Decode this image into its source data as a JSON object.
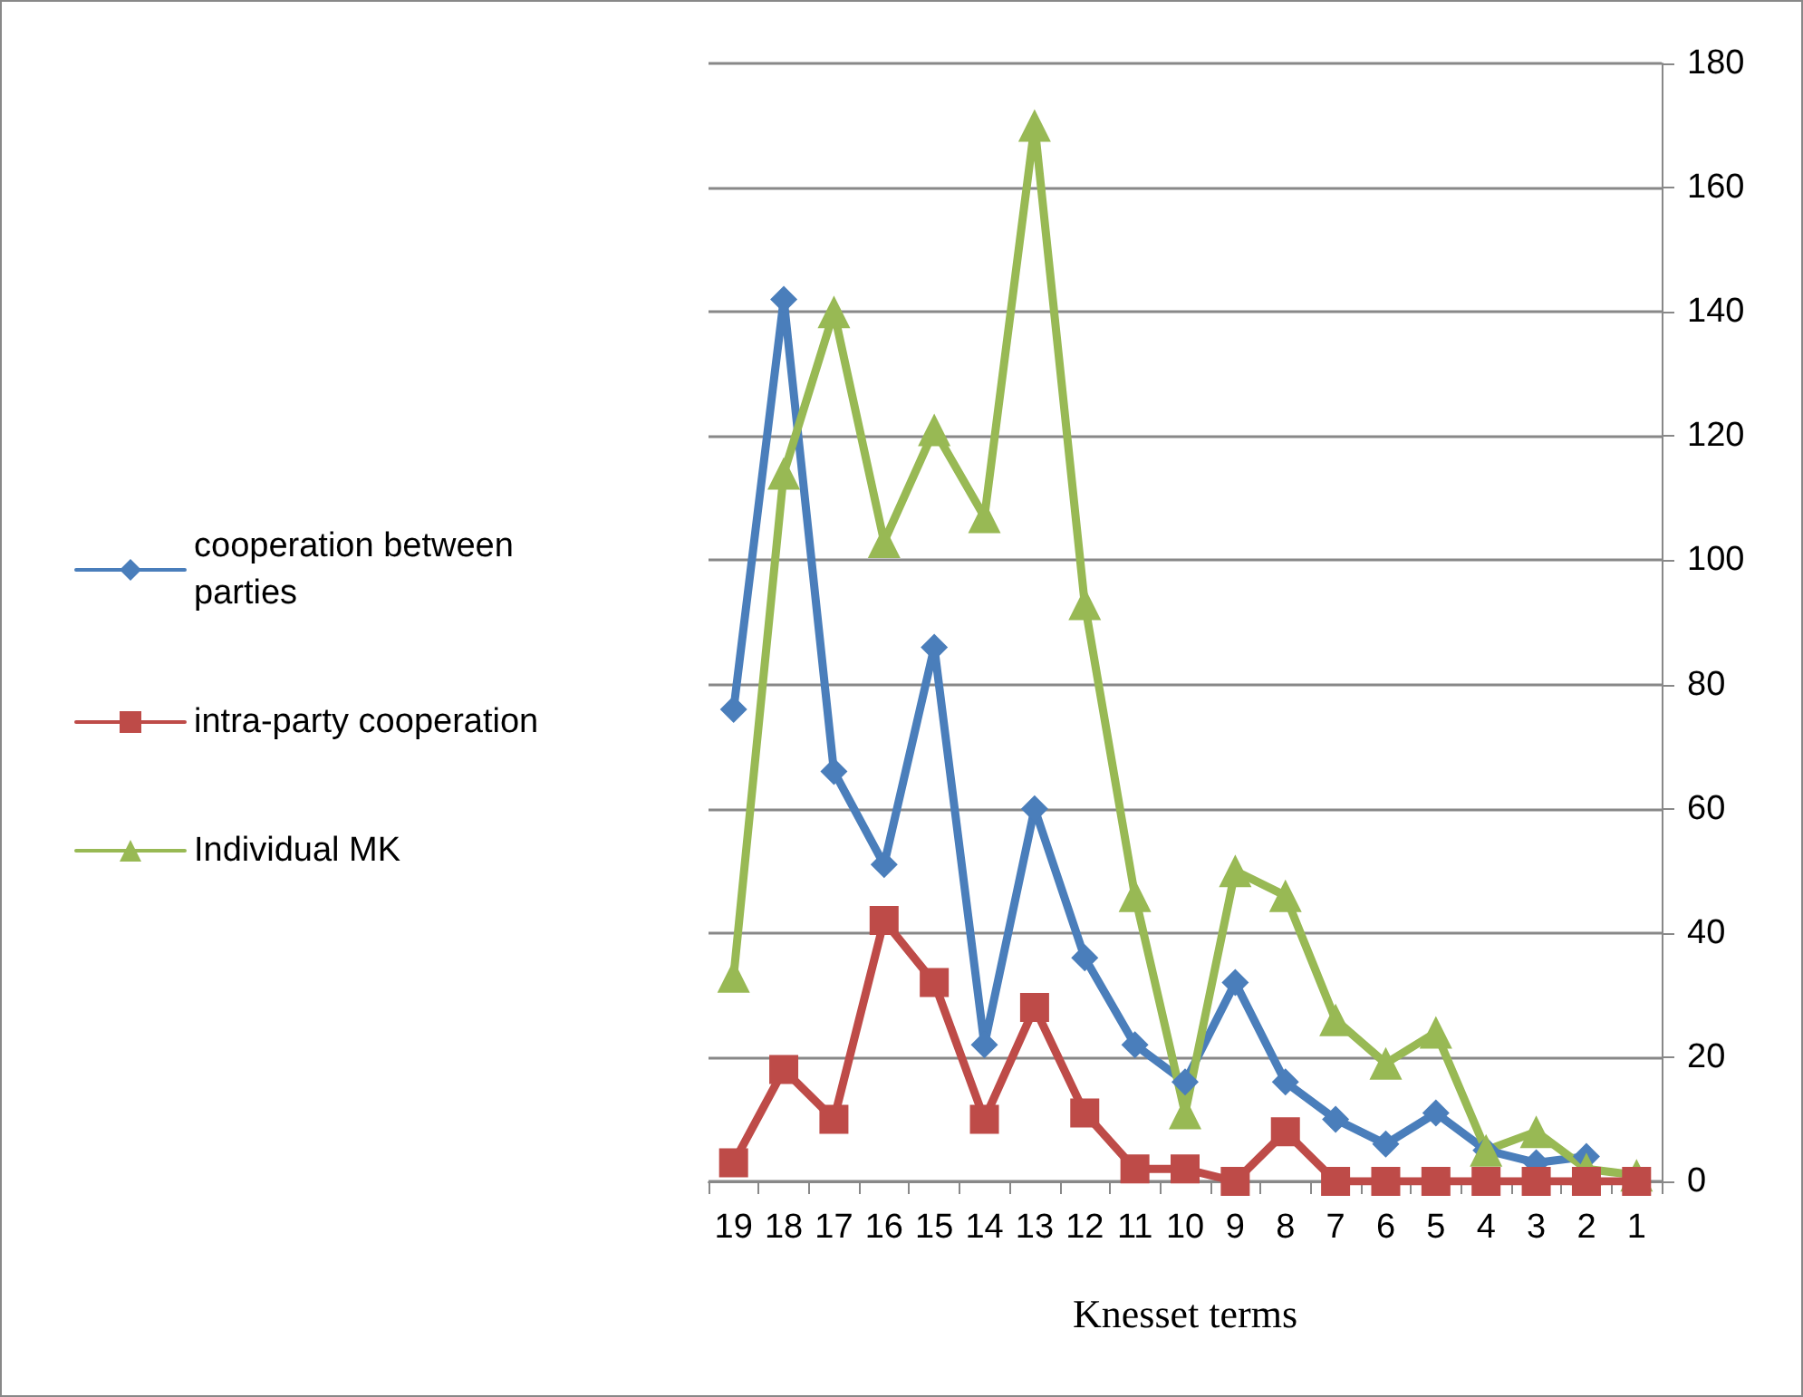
{
  "chart_data": {
    "type": "line",
    "xlabel": "Knesset terms",
    "categories": [
      "19",
      "18",
      "17",
      "16",
      "15",
      "14",
      "13",
      "12",
      "11",
      "10",
      "9",
      "8",
      "7",
      "6",
      "5",
      "4",
      "3",
      "2",
      "1"
    ],
    "series": [
      {
        "name": "cooperation between parties",
        "color": "#4a7ebb",
        "marker": "diamond",
        "values": [
          76,
          142,
          66,
          51,
          86,
          22,
          60,
          36,
          22,
          16,
          32,
          16,
          10,
          6,
          11,
          5,
          3,
          4,
          null
        ]
      },
      {
        "name": "intra-party cooperation",
        "color": "#be4b48",
        "marker": "square",
        "values": [
          3,
          18,
          10,
          42,
          32,
          10,
          28,
          11,
          2,
          2,
          0,
          8,
          0,
          0,
          0,
          0,
          0,
          0,
          0
        ]
      },
      {
        "name": "Individual MK",
        "color": "#98b954",
        "marker": "triangle",
        "values": [
          33,
          114,
          140,
          103,
          121,
          107,
          170,
          93,
          46,
          11,
          50,
          46,
          26,
          19,
          24,
          5,
          8,
          2,
          1
        ]
      }
    ],
    "ylim": [
      0,
      180
    ],
    "yticks": [
      0,
      20,
      40,
      60,
      80,
      100,
      120,
      140,
      160,
      180
    ],
    "grid": "y",
    "legend": "left"
  }
}
